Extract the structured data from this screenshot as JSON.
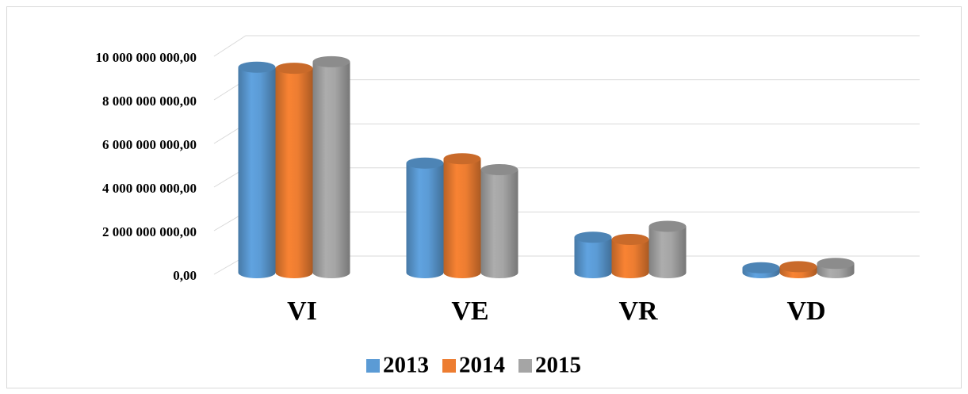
{
  "chart_data": {
    "type": "bar3d",
    "categories": [
      "VI",
      "VE",
      "VR",
      "VD"
    ],
    "series": [
      {
        "name": "2013",
        "color": "#5b9bd5",
        "values": [
          9500000000,
          5100000000,
          1700000000,
          300000000
        ]
      },
      {
        "name": "2014",
        "color": "#ed7d31",
        "values": [
          9450000000,
          5300000000,
          1600000000,
          350000000
        ]
      },
      {
        "name": "2015",
        "color": "#a5a5a5",
        "values": [
          9750000000,
          4800000000,
          2200000000,
          500000000
        ]
      }
    ],
    "ylim": [
      0,
      10000000000
    ],
    "yticks": [
      {
        "value": 0,
        "label": "0,00"
      },
      {
        "value": 2000000000,
        "label": "2 000 000 000,00"
      },
      {
        "value": 4000000000,
        "label": "4 000 000 000,00"
      },
      {
        "value": 6000000000,
        "label": "6 000 000 000,00"
      },
      {
        "value": 8000000000,
        "label": "8 000 000 000,00"
      },
      {
        "value": 10000000000,
        "label": "10 000 000 000,00"
      }
    ],
    "grid": true,
    "legend": "bottom"
  }
}
